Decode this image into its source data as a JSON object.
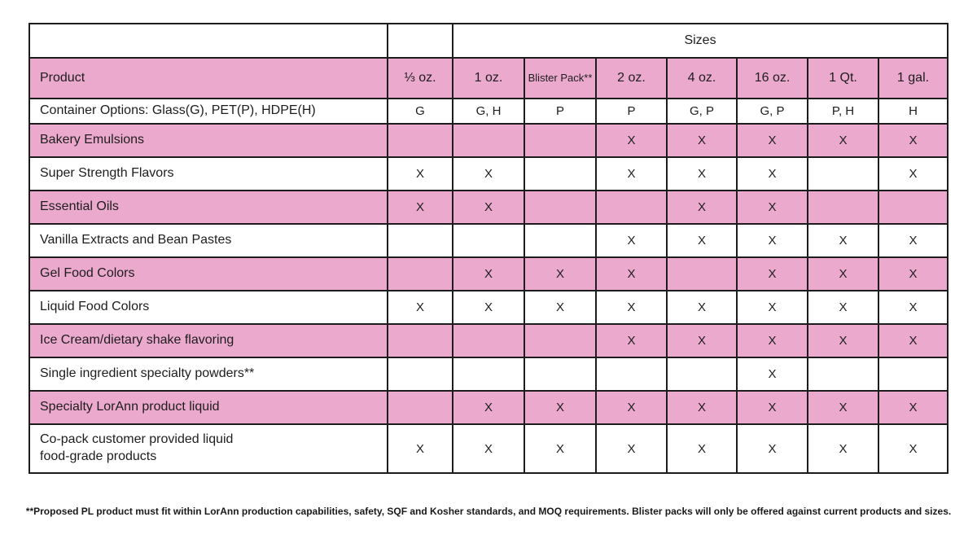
{
  "table": {
    "sizes_band_label": "Sizes",
    "product_column_header": "Product",
    "size_columns": [
      "⅓ oz.",
      "1 oz.",
      "Blister Pack**",
      "2 oz.",
      "4 oz.",
      "16 oz.",
      "1 Qt.",
      "1 gal."
    ],
    "container_row": {
      "label": "Container Options: Glass(G), PET(P), HDPE(H)",
      "values": [
        "G",
        "G, H",
        "P",
        "P",
        "G, P",
        "G, P",
        "P, H",
        "H"
      ]
    },
    "product_rows": [
      {
        "product": "Bakery Emulsions",
        "values": [
          "",
          "",
          "",
          "X",
          "X",
          "X",
          "X",
          "X"
        ]
      },
      {
        "product": "Super Strength Flavors",
        "values": [
          "X",
          "X",
          "",
          "X",
          "X",
          "X",
          "",
          "X"
        ]
      },
      {
        "product": "Essential Oils",
        "values": [
          "X",
          "X",
          "",
          "",
          "X",
          "X",
          "",
          ""
        ]
      },
      {
        "product": "Vanilla Extracts and Bean Pastes",
        "values": [
          "",
          "",
          "",
          "X",
          "X",
          "X",
          "X",
          "X"
        ]
      },
      {
        "product": "Gel Food Colors",
        "values": [
          "",
          "X",
          "X",
          "X",
          "",
          "X",
          "X",
          "X"
        ]
      },
      {
        "product": "Liquid Food Colors",
        "values": [
          "X",
          "X",
          "X",
          "X",
          "X",
          "X",
          "X",
          "X"
        ]
      },
      {
        "product": "Ice Cream/dietary shake flavoring",
        "values": [
          "",
          "",
          "",
          "X",
          "X",
          "X",
          "X",
          "X"
        ]
      },
      {
        "product": "Single ingredient specialty powders**",
        "values": [
          "",
          "",
          "",
          "",
          "",
          "X",
          "",
          ""
        ]
      },
      {
        "product": "Specialty LorAnn product liquid",
        "values": [
          "",
          "X",
          "X",
          "X",
          "X",
          "X",
          "X",
          "X"
        ]
      },
      {
        "product": "Co-pack customer provided liquid\nfood-grade products",
        "values": [
          "X",
          "X",
          "X",
          "X",
          "X",
          "X",
          "X",
          "X"
        ]
      }
    ]
  },
  "footnote": "**Proposed PL product must fit within LorAnn production capabilities, safety, SQF and Kosher standards, and MOQ requirements. Blister packs will only be offered against current products and sizes.",
  "colors": {
    "row_highlight_pink": "#ECA9CE",
    "border_black": "#1E1C1D"
  }
}
